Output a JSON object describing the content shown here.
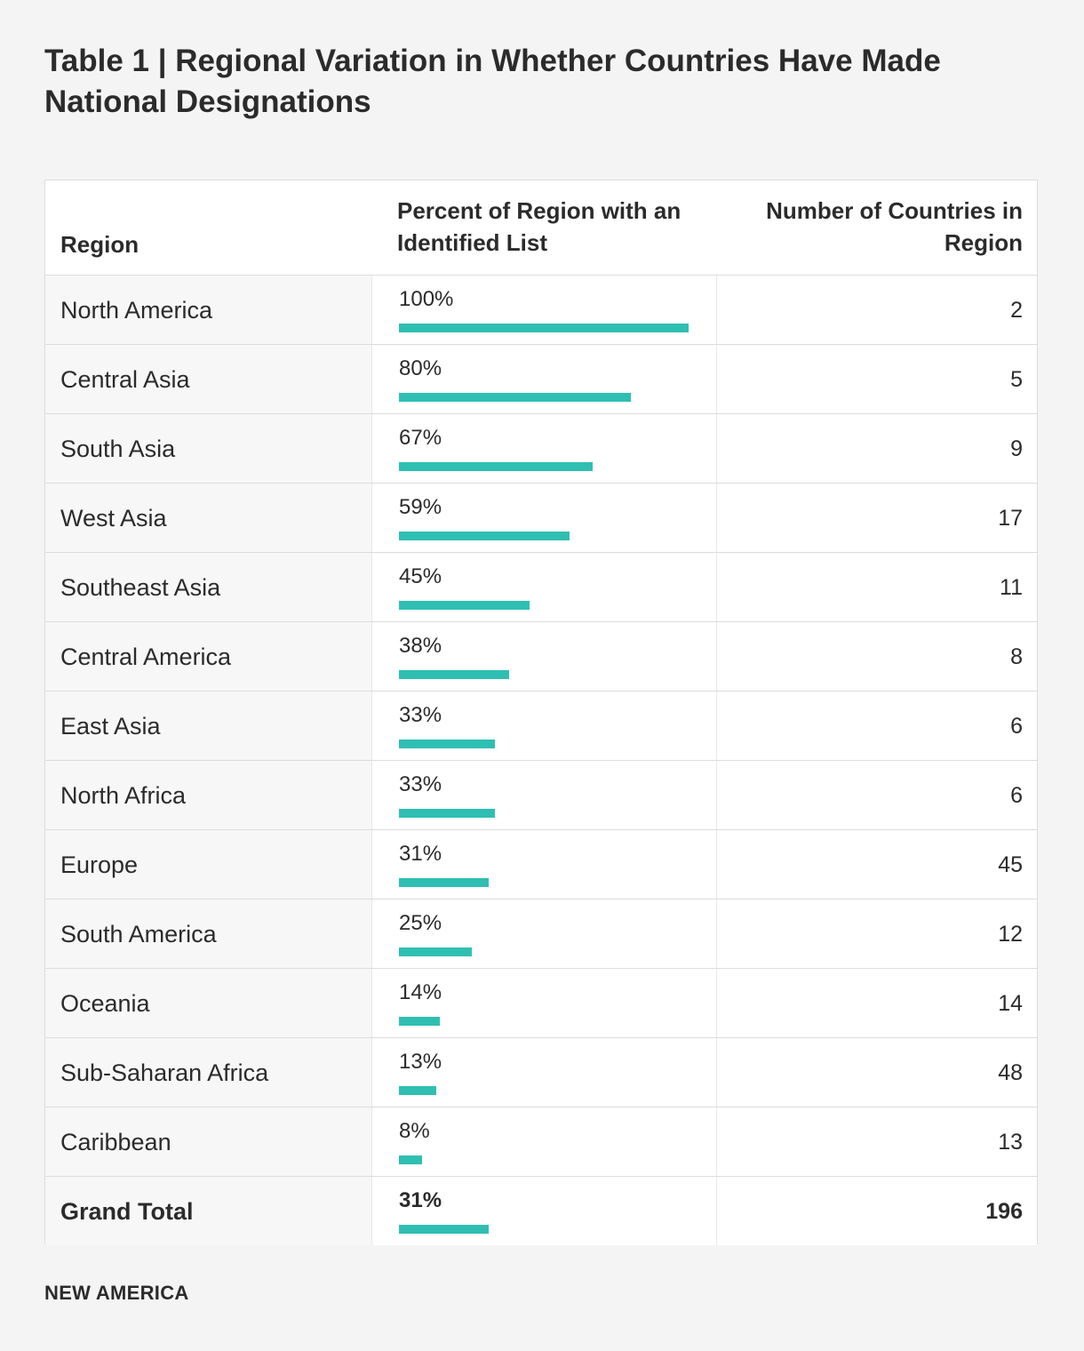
{
  "title": "Table 1 | Regional Variation in Whether Countries Have Made National Designations",
  "headers": {
    "region": "Region",
    "percent": "Percent of Region with an Identified List",
    "count": "Number of Countries in Region"
  },
  "footer": "NEW AMERICA",
  "colors": {
    "bar": "#2fbfb2",
    "background": "#f4f4f4",
    "text": "#2b2b2b"
  },
  "chart_data": {
    "type": "table",
    "columns": [
      "Region",
      "Percent of Region with an Identified List",
      "Number of Countries in Region"
    ],
    "rows": [
      {
        "region": "North America",
        "percent_label": "100%",
        "percent": 100,
        "count": "2"
      },
      {
        "region": "Central Asia",
        "percent_label": "80%",
        "percent": 80,
        "count": "5"
      },
      {
        "region": "South Asia",
        "percent_label": "67%",
        "percent": 67,
        "count": "9"
      },
      {
        "region": "West Asia",
        "percent_label": "59%",
        "percent": 59,
        "count": "17"
      },
      {
        "region": "Southeast Asia",
        "percent_label": "45%",
        "percent": 45,
        "count": "11"
      },
      {
        "region": "Central America",
        "percent_label": "38%",
        "percent": 38,
        "count": "8"
      },
      {
        "region": "East Asia",
        "percent_label": "33%",
        "percent": 33,
        "count": "6"
      },
      {
        "region": "North Africa",
        "percent_label": "33%",
        "percent": 33,
        "count": "6"
      },
      {
        "region": "Europe",
        "percent_label": "31%",
        "percent": 31,
        "count": "45"
      },
      {
        "region": "South America",
        "percent_label": "25%",
        "percent": 25,
        "count": "12"
      },
      {
        "region": "Oceania",
        "percent_label": "14%",
        "percent": 14,
        "count": "14"
      },
      {
        "region": "Sub-Saharan Africa",
        "percent_label": "13%",
        "percent": 13,
        "count": "48"
      },
      {
        "region": "Caribbean",
        "percent_label": "8%",
        "percent": 8,
        "count": "13"
      }
    ],
    "total": {
      "region": "Grand Total",
      "percent_label": "31%",
      "percent": 31,
      "count": "196"
    },
    "percent_range": [
      0,
      100
    ]
  }
}
